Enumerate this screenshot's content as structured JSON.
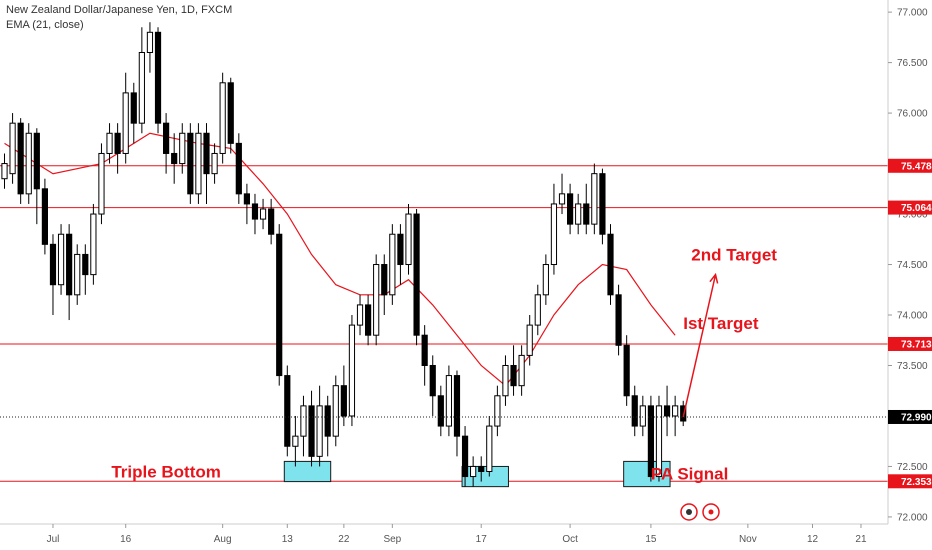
{
  "header": {
    "title": "New Zealand Dollar/Japanese Yen, 1D, FXCM",
    "indicator": "EMA (21, close)"
  },
  "chart_data": {
    "type": "candlestick",
    "y_axis": {
      "ylim": [
        71.93,
        77.12
      ],
      "ticks": [
        "72.000",
        "72.500",
        "73.000",
        "73.500",
        "74.000",
        "74.500",
        "75.000",
        "75.500",
        "76.000",
        "76.500",
        "77.000"
      ]
    },
    "x_axis": {
      "ticks": [
        {
          "label": "Jul",
          "index": 6
        },
        {
          "label": "16",
          "index": 15
        },
        {
          "label": "Aug",
          "index": 27
        },
        {
          "label": "13",
          "index": 35
        },
        {
          "label": "22",
          "index": 42
        },
        {
          "label": "Sep",
          "index": 48
        },
        {
          "label": "17",
          "index": 59
        },
        {
          "label": "Oct",
          "index": 70
        },
        {
          "label": "15",
          "index": 80
        },
        {
          "label": "Nov",
          "index": 92
        },
        {
          "label": "12",
          "index": 100
        },
        {
          "label": "21",
          "index": 106
        }
      ]
    },
    "candles": [
      [
        75.35,
        75.5,
        75.6,
        75.25
      ],
      [
        75.4,
        75.9,
        76.0,
        75.3
      ],
      [
        75.9,
        75.2,
        75.95,
        75.1
      ],
      [
        75.2,
        75.8,
        75.9,
        75.1
      ],
      [
        75.8,
        75.25,
        75.85,
        74.9
      ],
      [
        75.25,
        74.7,
        75.35,
        74.6
      ],
      [
        74.7,
        74.3,
        74.8,
        74.0
      ],
      [
        74.3,
        74.8,
        74.9,
        74.2
      ],
      [
        74.8,
        74.2,
        74.9,
        73.95
      ],
      [
        74.2,
        74.6,
        74.7,
        74.1
      ],
      [
        74.6,
        74.4,
        74.7,
        74.2
      ],
      [
        74.4,
        75.0,
        75.1,
        74.3
      ],
      [
        75.0,
        75.6,
        75.7,
        74.9
      ],
      [
        75.6,
        75.8,
        75.9,
        75.5
      ],
      [
        75.8,
        75.6,
        75.9,
        75.4
      ],
      [
        75.6,
        76.2,
        76.4,
        75.5
      ],
      [
        76.2,
        75.9,
        76.3,
        75.7
      ],
      [
        75.9,
        76.6,
        76.85,
        75.8
      ],
      [
        76.6,
        76.8,
        76.9,
        76.4
      ],
      [
        76.8,
        75.9,
        76.85,
        75.8
      ],
      [
        75.9,
        75.6,
        76.0,
        75.4
      ],
      [
        75.6,
        75.5,
        75.8,
        75.3
      ],
      [
        75.5,
        75.8,
        75.9,
        75.4
      ],
      [
        75.8,
        75.2,
        75.9,
        75.1
      ],
      [
        75.2,
        75.8,
        75.9,
        75.1
      ],
      [
        75.8,
        75.4,
        75.9,
        75.1
      ],
      [
        75.4,
        75.6,
        75.7,
        75.3
      ],
      [
        75.6,
        76.3,
        76.4,
        75.5
      ],
      [
        76.3,
        75.7,
        76.35,
        75.6
      ],
      [
        75.7,
        75.2,
        75.8,
        75.1
      ],
      [
        75.2,
        75.1,
        75.3,
        74.9
      ],
      [
        75.1,
        74.95,
        75.2,
        74.8
      ],
      [
        74.95,
        75.05,
        75.15,
        74.85
      ],
      [
        75.05,
        74.8,
        75.15,
        74.7
      ],
      [
        74.8,
        73.4,
        74.9,
        73.3
      ],
      [
        73.4,
        72.7,
        73.5,
        72.6
      ],
      [
        72.7,
        72.8,
        73.0,
        72.5
      ],
      [
        72.8,
        73.1,
        73.2,
        72.6
      ],
      [
        73.1,
        72.6,
        73.25,
        72.5
      ],
      [
        72.6,
        73.1,
        73.3,
        72.5
      ],
      [
        73.1,
        72.8,
        73.2,
        72.6
      ],
      [
        72.8,
        73.3,
        73.4,
        72.7
      ],
      [
        73.3,
        73.0,
        73.5,
        72.9
      ],
      [
        73.0,
        73.9,
        74.0,
        72.9
      ],
      [
        73.9,
        74.1,
        74.2,
        73.8
      ],
      [
        74.1,
        73.8,
        74.2,
        73.7
      ],
      [
        73.8,
        74.5,
        74.6,
        73.7
      ],
      [
        74.5,
        74.2,
        74.6,
        74.0
      ],
      [
        74.2,
        74.8,
        74.9,
        74.1
      ],
      [
        74.8,
        74.5,
        74.9,
        74.3
      ],
      [
        74.5,
        75.0,
        75.1,
        74.4
      ],
      [
        75.0,
        73.8,
        75.05,
        73.7
      ],
      [
        73.8,
        73.5,
        73.9,
        73.3
      ],
      [
        73.5,
        73.2,
        73.6,
        73.0
      ],
      [
        73.2,
        72.9,
        73.3,
        72.8
      ],
      [
        72.9,
        73.4,
        73.5,
        72.8
      ],
      [
        73.4,
        72.8,
        73.45,
        72.6
      ],
      [
        72.8,
        72.4,
        72.9,
        72.3
      ],
      [
        72.4,
        72.5,
        72.6,
        72.3
      ],
      [
        72.5,
        72.45,
        72.6,
        72.35
      ],
      [
        72.45,
        72.9,
        73.0,
        72.4
      ],
      [
        72.9,
        73.2,
        73.3,
        72.8
      ],
      [
        73.2,
        73.5,
        73.6,
        73.1
      ],
      [
        73.5,
        73.3,
        73.7,
        73.2
      ],
      [
        73.3,
        73.6,
        73.7,
        73.2
      ],
      [
        73.6,
        73.9,
        74.0,
        73.5
      ],
      [
        73.9,
        74.2,
        74.3,
        73.8
      ],
      [
        74.2,
        74.5,
        74.6,
        74.1
      ],
      [
        74.5,
        75.1,
        75.3,
        74.4
      ],
      [
        75.1,
        75.2,
        75.4,
        75.0
      ],
      [
        75.2,
        74.9,
        75.3,
        74.8
      ],
      [
        74.9,
        75.1,
        75.2,
        74.8
      ],
      [
        75.1,
        74.9,
        75.3,
        74.8
      ],
      [
        74.9,
        75.4,
        75.5,
        74.8
      ],
      [
        75.4,
        74.8,
        75.45,
        74.7
      ],
      [
        74.8,
        74.2,
        74.9,
        74.1
      ],
      [
        74.2,
        73.7,
        74.3,
        73.6
      ],
      [
        73.7,
        73.2,
        73.8,
        73.1
      ],
      [
        73.2,
        72.9,
        73.3,
        72.8
      ],
      [
        72.9,
        73.1,
        73.2,
        72.8
      ],
      [
        73.1,
        72.4,
        73.2,
        72.35
      ],
      [
        72.4,
        73.1,
        73.2,
        72.35
      ],
      [
        73.1,
        73.0,
        73.3,
        72.8
      ],
      [
        73.0,
        73.1,
        73.2,
        72.8
      ],
      [
        73.1,
        72.95,
        73.15,
        72.9
      ]
    ],
    "ema_21": [
      {
        "i": 0,
        "v": 75.7
      },
      {
        "i": 6,
        "v": 75.4
      },
      {
        "i": 12,
        "v": 75.5
      },
      {
        "i": 18,
        "v": 75.8
      },
      {
        "i": 24,
        "v": 75.7
      },
      {
        "i": 28,
        "v": 75.65
      },
      {
        "i": 32,
        "v": 75.3
      },
      {
        "i": 35,
        "v": 75.0
      },
      {
        "i": 38,
        "v": 74.6
      },
      {
        "i": 41,
        "v": 74.3
      },
      {
        "i": 44,
        "v": 74.2
      },
      {
        "i": 47,
        "v": 74.2
      },
      {
        "i": 50,
        "v": 74.35
      },
      {
        "i": 53,
        "v": 74.1
      },
      {
        "i": 56,
        "v": 73.8
      },
      {
        "i": 59,
        "v": 73.5
      },
      {
        "i": 62,
        "v": 73.3
      },
      {
        "i": 65,
        "v": 73.6
      },
      {
        "i": 68,
        "v": 74.0
      },
      {
        "i": 71,
        "v": 74.3
      },
      {
        "i": 74,
        "v": 74.5
      },
      {
        "i": 77,
        "v": 74.45
      },
      {
        "i": 80,
        "v": 74.1
      },
      {
        "i": 83,
        "v": 73.8
      }
    ],
    "levels": [
      {
        "price": 75.478,
        "label": "75.478",
        "color": "#e8141c"
      },
      {
        "price": 75.064,
        "label": "75.064",
        "color": "#e8141c"
      },
      {
        "price": 73.713,
        "label": "73.713",
        "color": "#e8141c"
      },
      {
        "price": 72.353,
        "label": "72.353",
        "color": "#e8141c"
      }
    ],
    "current_price": {
      "price": 72.99,
      "label": "72.990"
    },
    "annotations": [
      {
        "text": "2nd Target",
        "i": 85,
        "price": 74.5
      },
      {
        "text": "Ist Target",
        "i": 84,
        "price": 73.82
      },
      {
        "text": "Triple Bottom",
        "i": 20,
        "price": 72.35
      },
      {
        "text": "PA Signal",
        "i": 80,
        "price": 72.33
      }
    ],
    "zones": [
      {
        "i0": 35,
        "i1": 40,
        "p0": 72.35,
        "p1": 72.55
      },
      {
        "i0": 57,
        "i1": 62,
        "p0": 72.3,
        "p1": 72.5
      },
      {
        "i0": 77,
        "i1": 82,
        "p0": 72.3,
        "p1": 72.55
      }
    ],
    "arrow": {
      "from": {
        "i": 84,
        "price": 72.99
      },
      "to": {
        "i": 88,
        "price": 74.4
      }
    },
    "colors": {
      "up": "#ffffff",
      "down": "#000000",
      "wick": "#000000",
      "ema": "#e8141c",
      "level": "#e8141c",
      "zone_fill": "#7fe3ee",
      "zone_border": "#1a1a1a",
      "price_tag_current": "#000000",
      "price_tag_level": "#e8141c"
    }
  }
}
